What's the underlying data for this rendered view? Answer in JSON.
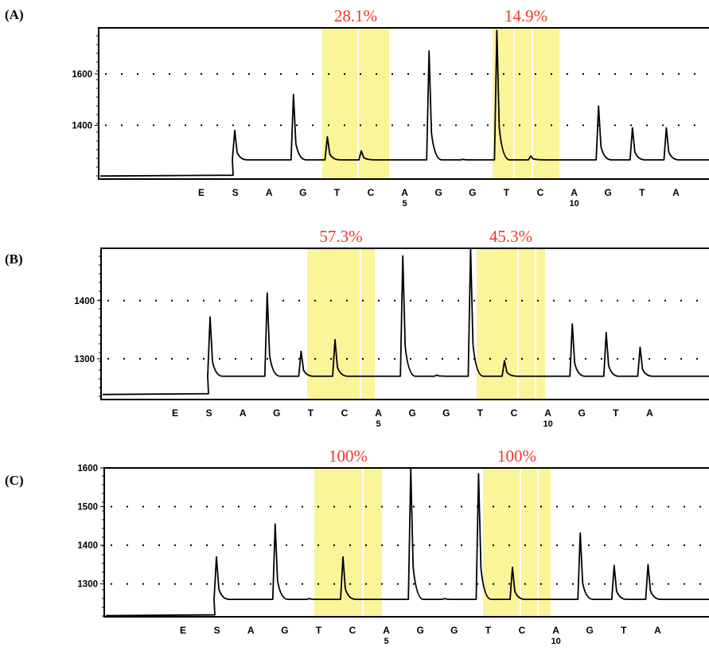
{
  "chart_data": [
    {
      "type": "line",
      "panel_label": "(A)",
      "subtype": "pyrogram",
      "yticks": [
        1400,
        1600
      ],
      "ylim": [
        1190,
        1780
      ],
      "sequence": [
        "E",
        "S",
        "A",
        "G",
        "T",
        "C",
        "A",
        "G",
        "G",
        "T",
        "C",
        "A",
        "G",
        "T",
        "A"
      ],
      "position_labels": [
        {
          "base_index": 6,
          "label": "5"
        },
        {
          "base_index": 11,
          "label": "10"
        }
      ],
      "baseline": 1265,
      "pre_baseline": 1205,
      "peaks": [
        {
          "base": "S",
          "value": 1380
        },
        {
          "base": "G",
          "value": 1520
        },
        {
          "base": "T",
          "value": 1355
        },
        {
          "base": "C",
          "value": 1300
        },
        {
          "base": "G",
          "value": 1690
        },
        {
          "base": "G",
          "value": 1267
        },
        {
          "base": "T",
          "value": 1770
        },
        {
          "base": "C",
          "value": 1280
        },
        {
          "base": "G",
          "value": 1475
        },
        {
          "base": "T",
          "value": 1390
        },
        {
          "base": "A",
          "value": 1390
        }
      ],
      "highlights": [
        {
          "label": "28.1%",
          "span": [
            "T",
            "C"
          ]
        },
        {
          "label": "14.9%",
          "span": [
            "T",
            "C"
          ]
        }
      ],
      "grid": true
    },
    {
      "type": "line",
      "panel_label": "(B)",
      "subtype": "pyrogram",
      "yticks": [
        1300,
        1400
      ],
      "ylim": [
        1230,
        1490
      ],
      "sequence": [
        "E",
        "S",
        "A",
        "G",
        "T",
        "C",
        "A",
        "G",
        "G",
        "T",
        "C",
        "A",
        "G",
        "T",
        "A"
      ],
      "position_labels": [
        {
          "base_index": 6,
          "label": "5"
        },
        {
          "base_index": 11,
          "label": "10"
        }
      ],
      "baseline": 1270,
      "pre_baseline": 1240,
      "peaks": [
        {
          "base": "S",
          "value": 1372
        },
        {
          "base": "G",
          "value": 1413
        },
        {
          "base": "T",
          "value": 1313
        },
        {
          "base": "C",
          "value": 1333
        },
        {
          "base": "G",
          "value": 1477
        },
        {
          "base": "G",
          "value": 1272
        },
        {
          "base": "T",
          "value": 1490
        },
        {
          "base": "C",
          "value": 1297
        },
        {
          "base": "G",
          "value": 1360
        },
        {
          "base": "T",
          "value": 1345
        },
        {
          "base": "A",
          "value": 1320
        }
      ],
      "highlights": [
        {
          "label": "57.3%",
          "span": [
            "T",
            "C"
          ]
        },
        {
          "label": "45.3%",
          "span": [
            "T",
            "C"
          ]
        }
      ],
      "grid": true
    },
    {
      "type": "line",
      "panel_label": "(C)",
      "subtype": "pyrogram",
      "yticks": [
        1300,
        1400,
        1500,
        1600
      ],
      "ylim": [
        1215,
        1600
      ],
      "sequence": [
        "E",
        "S",
        "A",
        "G",
        "T",
        "C",
        "A",
        "G",
        "G",
        "T",
        "C",
        "A",
        "G",
        "T",
        "A"
      ],
      "position_labels": [
        {
          "base_index": 6,
          "label": "5"
        },
        {
          "base_index": 11,
          "label": "10"
        }
      ],
      "baseline": 1260,
      "pre_baseline": 1220,
      "peaks": [
        {
          "base": "S",
          "value": 1370
        },
        {
          "base": "G",
          "value": 1455
        },
        {
          "base": "T",
          "value": 1262
        },
        {
          "base": "C",
          "value": 1370
        },
        {
          "base": "G",
          "value": 1598
        },
        {
          "base": "G",
          "value": 1262
        },
        {
          "base": "T",
          "value": 1585
        },
        {
          "base": "C",
          "value": 1343
        },
        {
          "base": "G",
          "value": 1432
        },
        {
          "base": "T",
          "value": 1348
        },
        {
          "base": "A",
          "value": 1350
        }
      ],
      "highlights": [
        {
          "label": "100%",
          "span": [
            "T",
            "C"
          ]
        },
        {
          "label": "100%",
          "span": [
            "T",
            "C"
          ]
        }
      ],
      "grid": true
    }
  ],
  "colors": {
    "highlight": "#fbf59a",
    "highlight_divider": "#ffffff",
    "percent_text": "#f0362a",
    "trace": "#000000",
    "grid": "#000000"
  }
}
